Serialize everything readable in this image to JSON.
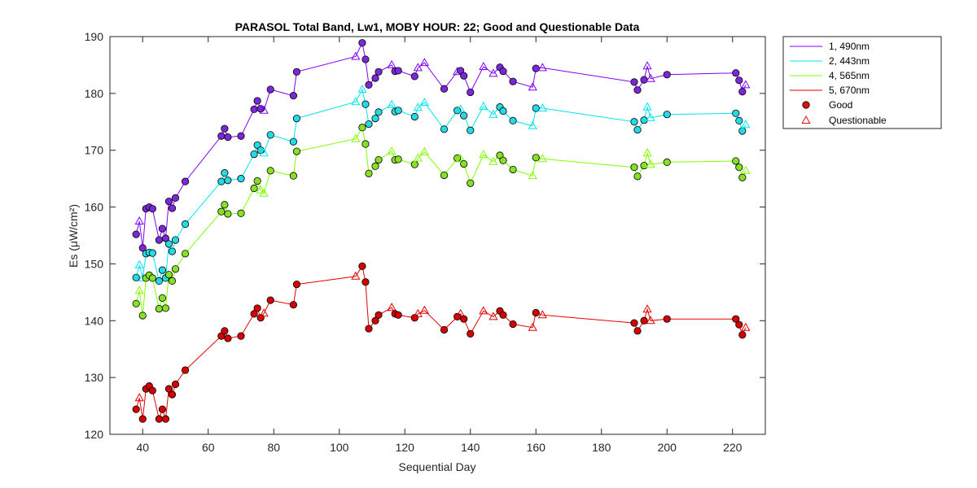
{
  "chart_data": {
    "type": "line",
    "title": "PARASOL Total Band,  Lw1, MOBY HOUR: 22;  Good and Questionable Data",
    "xlabel": "Sequential Day",
    "ylabel": "Es (μW/cm²)",
    "xlim": [
      30,
      230
    ],
    "ylim": [
      120,
      190
    ],
    "xticks": [
      "40",
      "60",
      "80",
      "100",
      "120",
      "140",
      "160",
      "180",
      "200",
      "220"
    ],
    "yticks": [
      "120",
      "130",
      "140",
      "150",
      "160",
      "170",
      "180",
      "190"
    ],
    "grid": false,
    "legend_position": "outside-top-right",
    "legend": [
      "1, 490nm",
      "2, 443nm",
      "4, 565nm",
      "5, 670nm",
      "Good",
      "Questionable"
    ],
    "series": [
      {
        "name": "1, 490nm",
        "color": "#8000ff",
        "marker_fill": "#7a28d8",
        "points": [
          [
            38,
            155.2,
            "g"
          ],
          [
            39,
            157.5,
            "q"
          ],
          [
            40,
            152.8,
            "g"
          ],
          [
            41,
            159.7,
            "g"
          ],
          [
            42,
            160.0,
            "g"
          ],
          [
            43,
            159.7,
            "g"
          ],
          [
            45,
            154.2,
            "g"
          ],
          [
            46,
            156.2,
            "g"
          ],
          [
            47,
            154.5,
            "g"
          ],
          [
            48,
            161.0,
            "g"
          ],
          [
            49,
            159.8,
            "g"
          ],
          [
            50,
            161.6,
            "g"
          ],
          [
            53,
            164.5,
            "g"
          ],
          [
            64,
            172.5,
            "g"
          ],
          [
            65,
            173.8,
            "g"
          ],
          [
            66,
            172.3,
            "g"
          ],
          [
            70,
            172.5,
            "g"
          ],
          [
            74,
            177.2,
            "g"
          ],
          [
            75,
            178.7,
            "g"
          ],
          [
            76,
            177.3,
            "g"
          ],
          [
            77,
            177.0,
            "q"
          ],
          [
            79,
            180.7,
            "g"
          ],
          [
            86,
            179.6,
            "g"
          ],
          [
            87,
            183.8,
            "g"
          ],
          [
            105,
            186.5,
            "q"
          ],
          [
            107,
            188.9,
            "g"
          ],
          [
            108,
            186.0,
            "g"
          ],
          [
            109,
            181.5,
            "g"
          ],
          [
            111,
            182.7,
            "g"
          ],
          [
            112,
            183.8,
            "g"
          ],
          [
            116,
            185.0,
            "q"
          ],
          [
            117,
            183.9,
            "g"
          ],
          [
            118,
            184.0,
            "g"
          ],
          [
            123,
            183.0,
            "g"
          ],
          [
            124,
            184.5,
            "q"
          ],
          [
            126,
            185.4,
            "q"
          ],
          [
            132,
            180.8,
            "g"
          ],
          [
            136,
            183.8,
            "q"
          ],
          [
            137,
            184.0,
            "g"
          ],
          [
            138,
            183.1,
            "g"
          ],
          [
            140,
            180.2,
            "g"
          ],
          [
            144,
            184.7,
            "q"
          ],
          [
            147,
            183.5,
            "q"
          ],
          [
            149,
            184.6,
            "g"
          ],
          [
            150,
            183.9,
            "g"
          ],
          [
            153,
            182.1,
            "g"
          ],
          [
            159,
            181.1,
            "q"
          ],
          [
            160,
            184.4,
            "g"
          ],
          [
            162,
            184.5,
            "q"
          ],
          [
            190,
            182.0,
            "g"
          ],
          [
            191,
            180.6,
            "g"
          ],
          [
            193,
            182.4,
            "g"
          ],
          [
            194,
            184.8,
            "q"
          ],
          [
            195,
            182.6,
            "q"
          ],
          [
            200,
            183.3,
            "g"
          ],
          [
            221,
            183.6,
            "g"
          ],
          [
            222,
            182.3,
            "g"
          ],
          [
            223,
            180.3,
            "g"
          ],
          [
            224,
            181.5,
            "q"
          ]
        ]
      },
      {
        "name": "2, 443nm",
        "color": "#00e5ee",
        "marker_fill": "#26d9e5",
        "points": [
          [
            38,
            147.6,
            "g"
          ],
          [
            39,
            149.8,
            "q"
          ],
          [
            40,
            147.5,
            "q"
          ],
          [
            41,
            151.8,
            "g"
          ],
          [
            42,
            152.0,
            "g"
          ],
          [
            43,
            151.9,
            "g"
          ],
          [
            45,
            147.0,
            "g"
          ],
          [
            46,
            148.9,
            "g"
          ],
          [
            47,
            147.5,
            "g"
          ],
          [
            48,
            153.5,
            "g"
          ],
          [
            49,
            152.2,
            "g"
          ],
          [
            50,
            154.2,
            "g"
          ],
          [
            53,
            157.0,
            "g"
          ],
          [
            64,
            164.5,
            "g"
          ],
          [
            65,
            166.0,
            "g"
          ],
          [
            66,
            164.7,
            "g"
          ],
          [
            70,
            165.0,
            "g"
          ],
          [
            74,
            169.3,
            "g"
          ],
          [
            75,
            170.9,
            "g"
          ],
          [
            76,
            170.0,
            "g"
          ],
          [
            77,
            169.5,
            "q"
          ],
          [
            79,
            172.7,
            "g"
          ],
          [
            86,
            171.5,
            "g"
          ],
          [
            87,
            175.6,
            "g"
          ],
          [
            105,
            178.5,
            "q"
          ],
          [
            107,
            180.7,
            "q"
          ],
          [
            108,
            178.1,
            "g"
          ],
          [
            109,
            174.6,
            "g"
          ],
          [
            111,
            175.6,
            "g"
          ],
          [
            112,
            176.7,
            "g"
          ],
          [
            116,
            178.0,
            "q"
          ],
          [
            117,
            176.8,
            "g"
          ],
          [
            118,
            177.0,
            "g"
          ],
          [
            123,
            175.9,
            "g"
          ],
          [
            124,
            177.5,
            "q"
          ],
          [
            126,
            178.4,
            "q"
          ],
          [
            132,
            173.7,
            "g"
          ],
          [
            136,
            177.0,
            "g"
          ],
          [
            137,
            177.2,
            "q"
          ],
          [
            138,
            176.1,
            "g"
          ],
          [
            140,
            173.5,
            "g"
          ],
          [
            144,
            177.7,
            "q"
          ],
          [
            147,
            176.3,
            "q"
          ],
          [
            149,
            177.6,
            "g"
          ],
          [
            150,
            176.9,
            "g"
          ],
          [
            153,
            175.2,
            "g"
          ],
          [
            159,
            174.3,
            "q"
          ],
          [
            160,
            177.4,
            "g"
          ],
          [
            162,
            177.4,
            "q"
          ],
          [
            190,
            175.0,
            "g"
          ],
          [
            191,
            173.6,
            "g"
          ],
          [
            193,
            175.3,
            "g"
          ],
          [
            194,
            177.6,
            "q"
          ],
          [
            195,
            175.7,
            "q"
          ],
          [
            200,
            176.3,
            "g"
          ],
          [
            221,
            176.5,
            "g"
          ],
          [
            222,
            175.2,
            "g"
          ],
          [
            223,
            173.4,
            "g"
          ],
          [
            224,
            174.5,
            "q"
          ]
        ]
      },
      {
        "name": "4, 565nm",
        "color": "#80ff00",
        "marker_fill": "#86e026",
        "points": [
          [
            38,
            143.0,
            "g"
          ],
          [
            39,
            145.3,
            "q"
          ],
          [
            40,
            140.9,
            "g"
          ],
          [
            41,
            147.5,
            "g"
          ],
          [
            42,
            148.0,
            "g"
          ],
          [
            43,
            147.5,
            "g"
          ],
          [
            45,
            142.1,
            "g"
          ],
          [
            46,
            144.0,
            "g"
          ],
          [
            47,
            142.2,
            "g"
          ],
          [
            48,
            148.1,
            "g"
          ],
          [
            49,
            147.0,
            "g"
          ],
          [
            50,
            149.1,
            "g"
          ],
          [
            53,
            151.8,
            "g"
          ],
          [
            64,
            159.2,
            "g"
          ],
          [
            65,
            160.4,
            "g"
          ],
          [
            66,
            158.8,
            "g"
          ],
          [
            70,
            158.9,
            "g"
          ],
          [
            74,
            163.3,
            "g"
          ],
          [
            75,
            164.6,
            "g"
          ],
          [
            76,
            163.0,
            "q"
          ],
          [
            77,
            162.4,
            "q"
          ],
          [
            79,
            166.4,
            "g"
          ],
          [
            86,
            165.5,
            "g"
          ],
          [
            87,
            169.8,
            "g"
          ],
          [
            105,
            172.0,
            "q"
          ],
          [
            107,
            174.0,
            "g"
          ],
          [
            108,
            171.1,
            "g"
          ],
          [
            109,
            165.9,
            "g"
          ],
          [
            111,
            167.2,
            "g"
          ],
          [
            112,
            168.3,
            "g"
          ],
          [
            116,
            169.8,
            "q"
          ],
          [
            117,
            168.3,
            "g"
          ],
          [
            118,
            168.4,
            "g"
          ],
          [
            123,
            167.5,
            "g"
          ],
          [
            124,
            168.6,
            "q"
          ],
          [
            126,
            169.7,
            "q"
          ],
          [
            132,
            165.6,
            "g"
          ],
          [
            136,
            168.6,
            "g"
          ],
          [
            137,
            168.5,
            "q"
          ],
          [
            138,
            167.6,
            "g"
          ],
          [
            140,
            164.2,
            "g"
          ],
          [
            144,
            169.2,
            "q"
          ],
          [
            147,
            168.0,
            "q"
          ],
          [
            149,
            169.1,
            "g"
          ],
          [
            150,
            168.2,
            "g"
          ],
          [
            153,
            166.6,
            "g"
          ],
          [
            159,
            165.5,
            "q"
          ],
          [
            160,
            168.7,
            "g"
          ],
          [
            162,
            168.5,
            "q"
          ],
          [
            190,
            167.0,
            "g"
          ],
          [
            191,
            165.4,
            "g"
          ],
          [
            193,
            167.3,
            "g"
          ],
          [
            194,
            169.5,
            "q"
          ],
          [
            195,
            167.5,
            "q"
          ],
          [
            200,
            167.9,
            "g"
          ],
          [
            221,
            168.1,
            "g"
          ],
          [
            222,
            167.0,
            "g"
          ],
          [
            223,
            165.2,
            "g"
          ],
          [
            224,
            166.4,
            "q"
          ]
        ]
      },
      {
        "name": "5, 670nm",
        "color": "#e60000",
        "marker_fill": "#d40000",
        "points": [
          [
            38,
            124.4,
            "g"
          ],
          [
            39,
            126.4,
            "q"
          ],
          [
            40,
            122.7,
            "g"
          ],
          [
            41,
            128.0,
            "g"
          ],
          [
            42,
            128.5,
            "g"
          ],
          [
            43,
            127.7,
            "g"
          ],
          [
            45,
            122.7,
            "g"
          ],
          [
            46,
            124.4,
            "g"
          ],
          [
            47,
            122.7,
            "g"
          ],
          [
            48,
            128.0,
            "g"
          ],
          [
            49,
            127.0,
            "g"
          ],
          [
            50,
            128.8,
            "g"
          ],
          [
            53,
            131.3,
            "g"
          ],
          [
            64,
            137.3,
            "g"
          ],
          [
            65,
            138.2,
            "g"
          ],
          [
            66,
            136.9,
            "g"
          ],
          [
            70,
            137.3,
            "g"
          ],
          [
            74,
            141.2,
            "g"
          ],
          [
            75,
            142.2,
            "g"
          ],
          [
            76,
            140.5,
            "g"
          ],
          [
            77,
            141.3,
            "q"
          ],
          [
            79,
            143.6,
            "g"
          ],
          [
            86,
            142.8,
            "g"
          ],
          [
            87,
            146.4,
            "g"
          ],
          [
            105,
            147.8,
            "q"
          ],
          [
            107,
            149.6,
            "g"
          ],
          [
            108,
            146.8,
            "g"
          ],
          [
            109,
            138.6,
            "g"
          ],
          [
            111,
            140.0,
            "g"
          ],
          [
            112,
            141.0,
            "g"
          ],
          [
            116,
            142.3,
            "q"
          ],
          [
            117,
            141.2,
            "g"
          ],
          [
            118,
            141.0,
            "g"
          ],
          [
            123,
            140.5,
            "g"
          ],
          [
            124,
            141.2,
            "q"
          ],
          [
            126,
            141.8,
            "q"
          ],
          [
            132,
            138.4,
            "g"
          ],
          [
            136,
            140.7,
            "g"
          ],
          [
            137,
            141.2,
            "q"
          ],
          [
            138,
            140.3,
            "g"
          ],
          [
            140,
            137.7,
            "g"
          ],
          [
            144,
            141.7,
            "q"
          ],
          [
            147,
            140.7,
            "q"
          ],
          [
            149,
            141.7,
            "g"
          ],
          [
            150,
            141.0,
            "g"
          ],
          [
            153,
            139.4,
            "g"
          ],
          [
            159,
            138.8,
            "q"
          ],
          [
            160,
            141.4,
            "g"
          ],
          [
            162,
            141.0,
            "q"
          ],
          [
            190,
            139.6,
            "g"
          ],
          [
            191,
            138.2,
            "g"
          ],
          [
            193,
            140.0,
            "g"
          ],
          [
            194,
            142.0,
            "q"
          ],
          [
            195,
            140.0,
            "q"
          ],
          [
            200,
            140.3,
            "g"
          ],
          [
            221,
            140.3,
            "g"
          ],
          [
            222,
            139.3,
            "g"
          ],
          [
            223,
            137.5,
            "g"
          ],
          [
            224,
            138.8,
            "q"
          ]
        ]
      }
    ],
    "good_marker_fill": "#e01010",
    "questionable_marker_color": "#e01010"
  }
}
